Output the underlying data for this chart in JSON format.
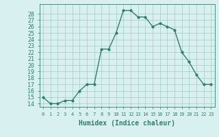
{
  "x": [
    0,
    1,
    2,
    3,
    4,
    5,
    6,
    7,
    8,
    9,
    10,
    11,
    12,
    13,
    14,
    15,
    16,
    17,
    18,
    19,
    20,
    21,
    22,
    23
  ],
  "y": [
    15,
    14,
    14,
    14.5,
    14.5,
    16,
    17,
    17,
    22.5,
    22.5,
    25,
    28.5,
    28.5,
    27.5,
    27.5,
    26,
    26.5,
    26,
    25.5,
    22,
    20.5,
    18.5,
    17,
    17
  ],
  "line_color": "#2e7f6e",
  "marker": "o",
  "marker_size": 2,
  "linewidth": 1.0,
  "bg_color": "#d8f0f0",
  "grid_color": "#a0c8c8",
  "xlabel": "Humidex (Indice chaleur)",
  "ylim": [
    13.5,
    29.5
  ],
  "xlim": [
    -0.5,
    23.5
  ],
  "yticks": [
    14,
    15,
    16,
    17,
    18,
    19,
    20,
    21,
    22,
    23,
    24,
    25,
    26,
    27,
    28
  ],
  "xticks": [
    0,
    1,
    2,
    3,
    4,
    5,
    6,
    7,
    8,
    9,
    10,
    11,
    12,
    13,
    14,
    15,
    16,
    17,
    18,
    19,
    20,
    21,
    22,
    23
  ],
  "tick_color": "#2e7f6e",
  "xlabel_fontsize": 7,
  "ytick_fontsize": 6,
  "xtick_fontsize": 5
}
